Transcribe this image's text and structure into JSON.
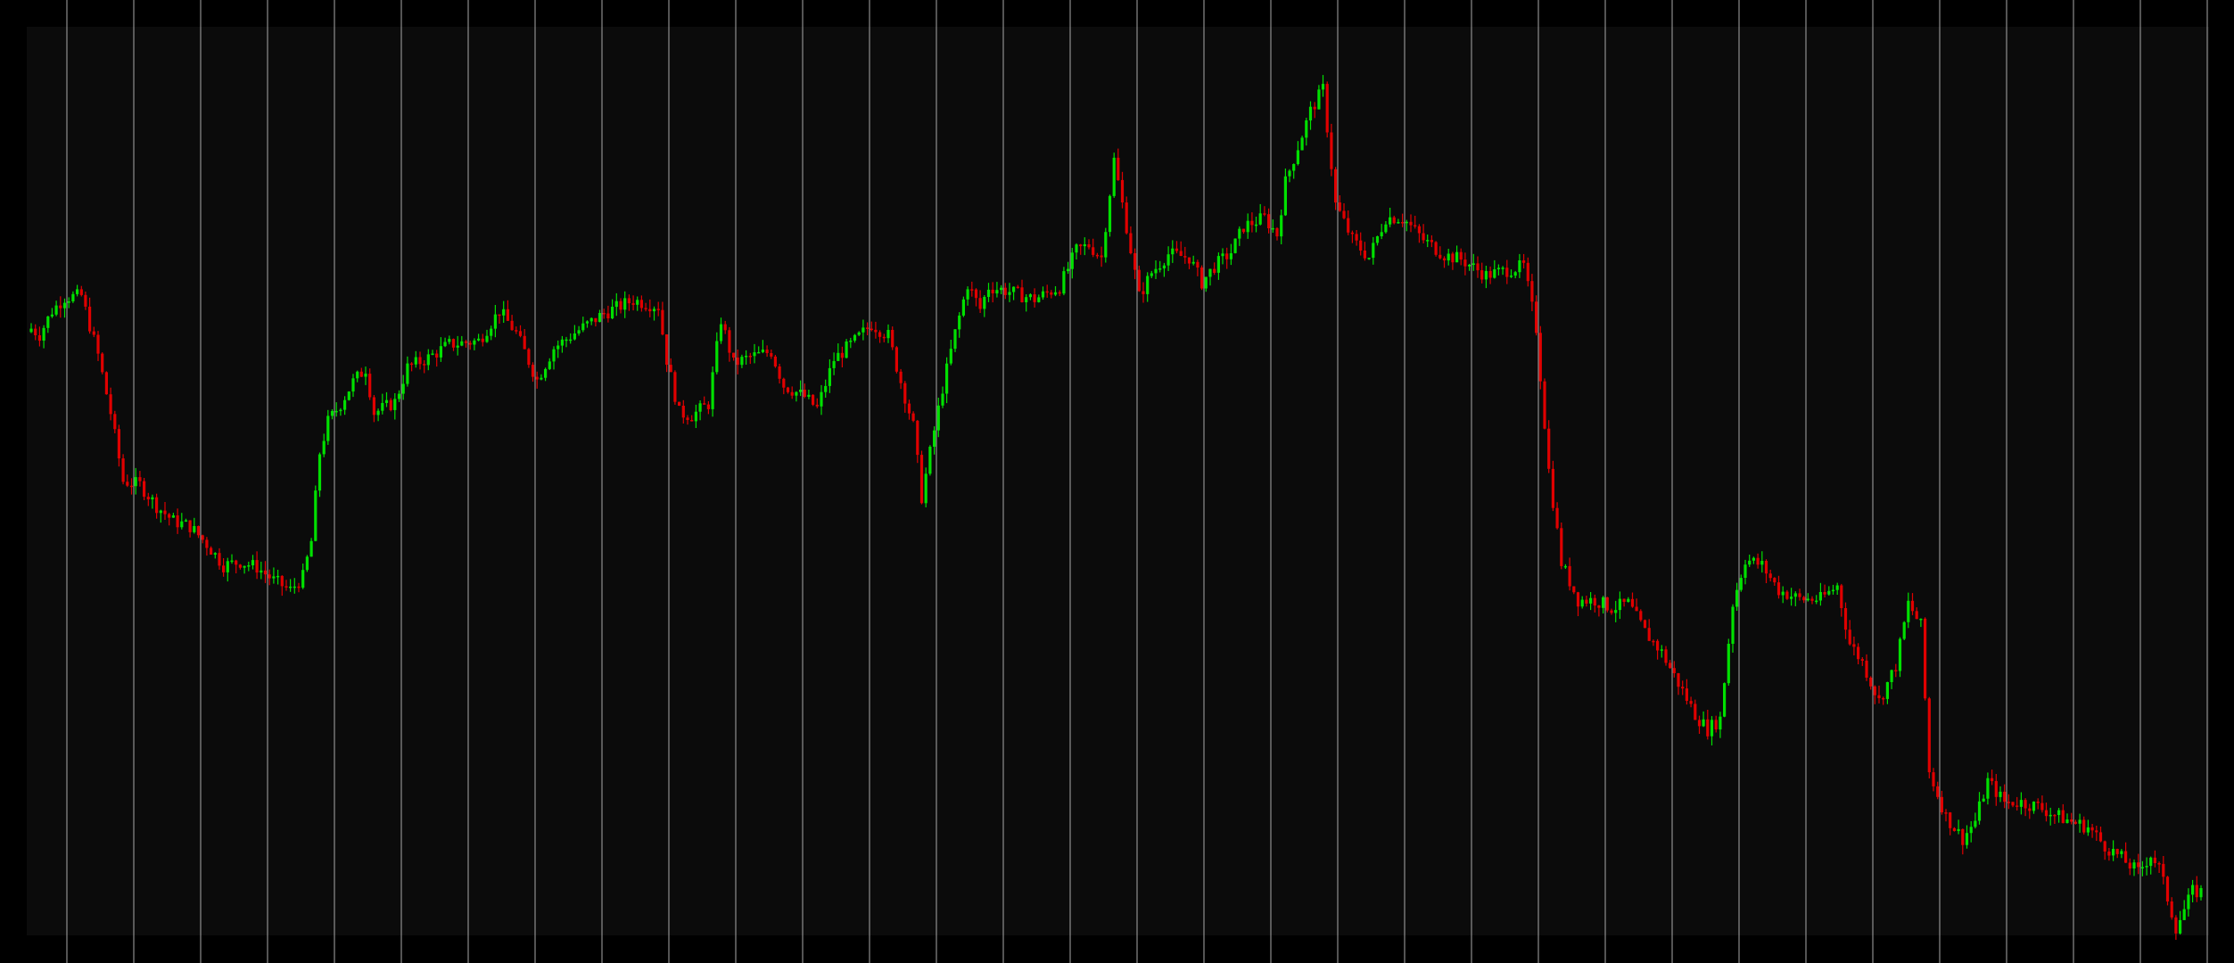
{
  "colors": {
    "background": "#000000",
    "plot_background": "#0b0b0b",
    "grid": "#a8a8a8",
    "bull": "#00e000",
    "bear": "#e00000"
  },
  "chart_data": {
    "type": "candlestick",
    "title": "",
    "xlabel": "",
    "ylabel": "",
    "grid": "vertical",
    "legend": "none",
    "ylim": [
      0,
      100
    ],
    "candle_count": 520,
    "price_path": [
      [
        0,
        68.0
      ],
      [
        2,
        67.3
      ],
      [
        5,
        70.0
      ],
      [
        8,
        71.5
      ],
      [
        12,
        71.7
      ],
      [
        16,
        65.0
      ],
      [
        19,
        58.5
      ],
      [
        22,
        50.8
      ],
      [
        26,
        50.4
      ],
      [
        30,
        48.0
      ],
      [
        34,
        46.3
      ],
      [
        38,
        45.7
      ],
      [
        42,
        43.7
      ],
      [
        46,
        41.3
      ],
      [
        50,
        41.7
      ],
      [
        54,
        41.1
      ],
      [
        58,
        39.6
      ],
      [
        62,
        38.5
      ],
      [
        65,
        40.0
      ],
      [
        67,
        44.0
      ],
      [
        69,
        54.0
      ],
      [
        71,
        57.5
      ],
      [
        74,
        59.5
      ],
      [
        77,
        62.0
      ],
      [
        80,
        63.5
      ],
      [
        82,
        58.5
      ],
      [
        87,
        59.7
      ],
      [
        90,
        63.6
      ],
      [
        95,
        64.7
      ],
      [
        100,
        66.2
      ],
      [
        107,
        66.6
      ],
      [
        112,
        70.0
      ],
      [
        116,
        67.5
      ],
      [
        121,
        62.2
      ],
      [
        125,
        65.8
      ],
      [
        130,
        67.5
      ],
      [
        137,
        69.7
      ],
      [
        144,
        71.2
      ],
      [
        150,
        70.5
      ],
      [
        152,
        64.5
      ],
      [
        155,
        58.5
      ],
      [
        158,
        58.2
      ],
      [
        162,
        59.5
      ],
      [
        165,
        69.0
      ],
      [
        168,
        64.0
      ],
      [
        172,
        64.8
      ],
      [
        177,
        65.4
      ],
      [
        180,
        61.6
      ],
      [
        185,
        60.3
      ],
      [
        188,
        59.0
      ],
      [
        192,
        64.5
      ],
      [
        197,
        66.6
      ],
      [
        201,
        68.5
      ],
      [
        205,
        67.2
      ],
      [
        208,
        62.0
      ],
      [
        211,
        57.0
      ],
      [
        213,
        49.0
      ],
      [
        216,
        56.5
      ],
      [
        218,
        61.3
      ],
      [
        221,
        67.5
      ],
      [
        224,
        73.0
      ],
      [
        227,
        70.2
      ],
      [
        229,
        72.7
      ],
      [
        233,
        72.3
      ],
      [
        240,
        71.3
      ],
      [
        246,
        72.7
      ],
      [
        250,
        76.8
      ],
      [
        253,
        77.4
      ],
      [
        256,
        76.0
      ],
      [
        259,
        87.0
      ],
      [
        262,
        79.5
      ],
      [
        265,
        71.6
      ],
      [
        268,
        74.3
      ],
      [
        272,
        76.4
      ],
      [
        277,
        76.0
      ],
      [
        280,
        73.2
      ],
      [
        283,
        75.0
      ],
      [
        287,
        76.6
      ],
      [
        290,
        79.5
      ],
      [
        295,
        80.5
      ],
      [
        298,
        78.6
      ],
      [
        300,
        84.5
      ],
      [
        303,
        88.5
      ],
      [
        306,
        92.5
      ],
      [
        309,
        95.0
      ],
      [
        312,
        82.0
      ],
      [
        316,
        78.0
      ],
      [
        320,
        76.0
      ],
      [
        324,
        80.5
      ],
      [
        328,
        80.5
      ],
      [
        333,
        78.0
      ],
      [
        338,
        76.3
      ],
      [
        342,
        75.8
      ],
      [
        348,
        74.0
      ],
      [
        354,
        74.7
      ],
      [
        357,
        75.0
      ],
      [
        360,
        68.0
      ],
      [
        363,
        52.0
      ],
      [
        366,
        41.6
      ],
      [
        370,
        37.4
      ],
      [
        374,
        37.4
      ],
      [
        378,
        36.5
      ],
      [
        382,
        37.0
      ],
      [
        386,
        33.8
      ],
      [
        390,
        31.5
      ],
      [
        394,
        28.0
      ],
      [
        398,
        24.5
      ],
      [
        401,
        22.8
      ],
      [
        404,
        24.0
      ],
      [
        407,
        37.0
      ],
      [
        410,
        42.0
      ],
      [
        414,
        41.3
      ],
      [
        418,
        38.5
      ],
      [
        423,
        37.5
      ],
      [
        428,
        37.5
      ],
      [
        432,
        39.0
      ],
      [
        435,
        32.5
      ],
      [
        438,
        30.4
      ],
      [
        442,
        26.0
      ],
      [
        446,
        30.0
      ],
      [
        449,
        37.0
      ],
      [
        452,
        34.5
      ],
      [
        454,
        18.0
      ],
      [
        458,
        13.0
      ],
      [
        462,
        10.5
      ],
      [
        465,
        12.5
      ],
      [
        468,
        17.0
      ],
      [
        472,
        14.6
      ],
      [
        476,
        14.6
      ],
      [
        480,
        14.1
      ],
      [
        484,
        13.2
      ],
      [
        488,
        12.4
      ],
      [
        492,
        11.8
      ],
      [
        496,
        9.7
      ],
      [
        500,
        8.3
      ],
      [
        504,
        6.7
      ],
      [
        507,
        8.7
      ],
      [
        509,
        7.2
      ],
      [
        511,
        3.8
      ],
      [
        513,
        0.5
      ],
      [
        517,
        4.5
      ]
    ]
  }
}
